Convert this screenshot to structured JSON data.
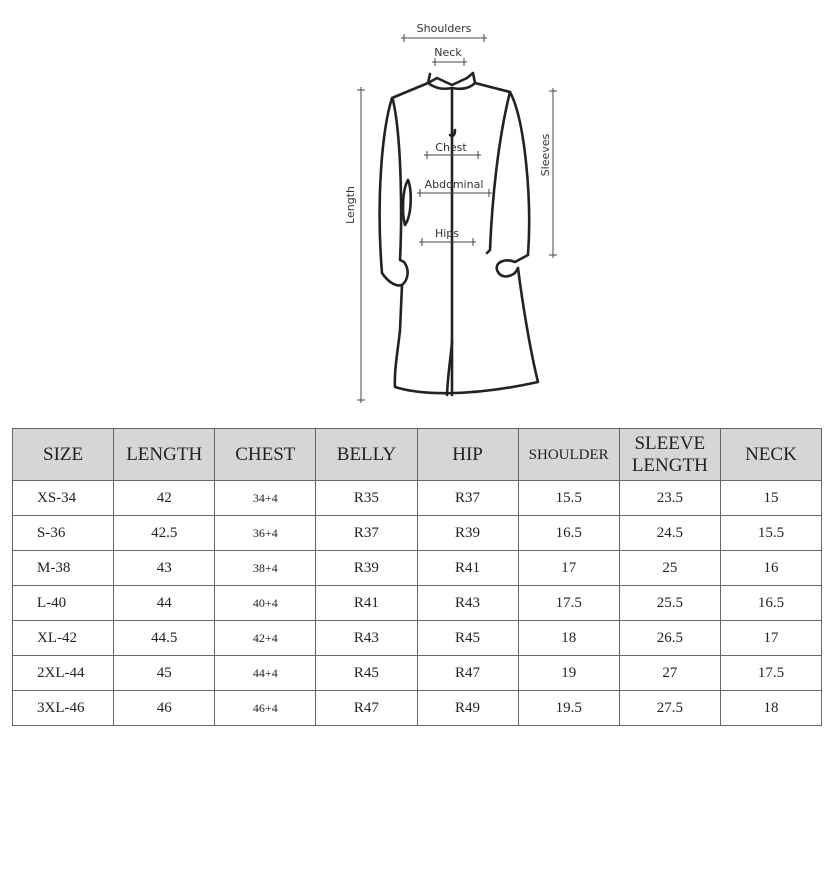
{
  "diagram": {
    "labels": {
      "shoulders": "Shoulders",
      "neck": "Neck",
      "chest": "Chest",
      "abdominal": "Abdominal",
      "hips": "Hips",
      "length": "Length",
      "sleeves": "Sleeves"
    }
  },
  "table": {
    "headers": [
      "SIZE",
      "LENGTH",
      "CHEST",
      "BELLY",
      "HIP",
      "SHOULDER",
      "SLEEVE LENGTH",
      "NECK"
    ],
    "rows": [
      [
        "XS-34",
        "42",
        "34+4",
        "R35",
        "R37",
        "15.5",
        "23.5",
        "15"
      ],
      [
        "S-36",
        "42.5",
        "36+4",
        "R37",
        "R39",
        "16.5",
        "24.5",
        "15.5"
      ],
      [
        "M-38",
        "43",
        "38+4",
        "R39",
        "R41",
        "17",
        "25",
        "16"
      ],
      [
        "L-40",
        "44",
        "40+4",
        "R41",
        "R43",
        "17.5",
        "25.5",
        "16.5"
      ],
      [
        "XL-42",
        "44.5",
        "42+4",
        "R43",
        "R45",
        "18",
        "26.5",
        "17"
      ],
      [
        "2XL-44",
        "45",
        "44+4",
        "R45",
        "R47",
        "19",
        "27",
        "17.5"
      ],
      [
        "3XL-46",
        "46",
        "46+4",
        "R47",
        "R49",
        "19.5",
        "27.5",
        "18"
      ]
    ]
  }
}
